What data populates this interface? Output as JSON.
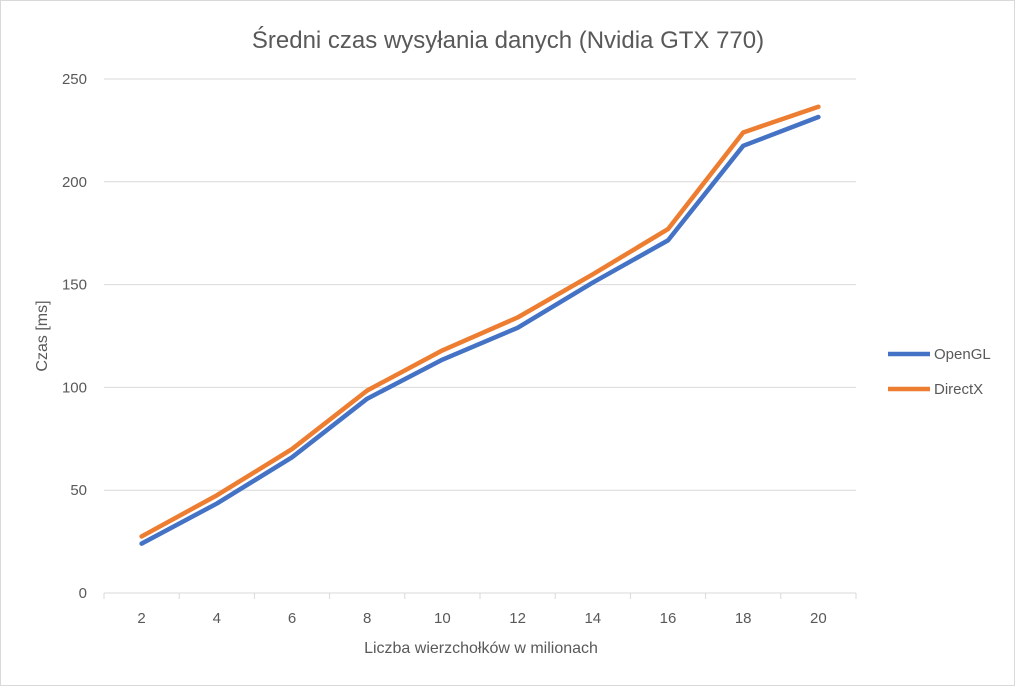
{
  "chart_data": {
    "type": "line",
    "title": "Średni czas wysyłania danych (Nvidia GTX 770)",
    "xlabel": "Liczba wierzchołków w milionach",
    "ylabel": "Czas  [ms]",
    "categories": [
      "2",
      "4",
      "6",
      "8",
      "10",
      "12",
      "14",
      "16",
      "18",
      "20"
    ],
    "ylim": [
      0,
      250
    ],
    "yticks": [
      "0",
      "50",
      "100",
      "150",
      "200",
      "250"
    ],
    "grid": true,
    "legend_position": "right",
    "series": [
      {
        "name": "OpenGL",
        "color": "#4472c4",
        "values": [
          24,
          43.5,
          66,
          94.5,
          113.5,
          129,
          151,
          171.5,
          217.5,
          231.5
        ]
      },
      {
        "name": "DirectX",
        "color": "#ed7d31",
        "values": [
          27.5,
          47.5,
          70,
          98.5,
          118,
          134,
          155,
          177,
          224,
          236.5
        ]
      }
    ]
  }
}
